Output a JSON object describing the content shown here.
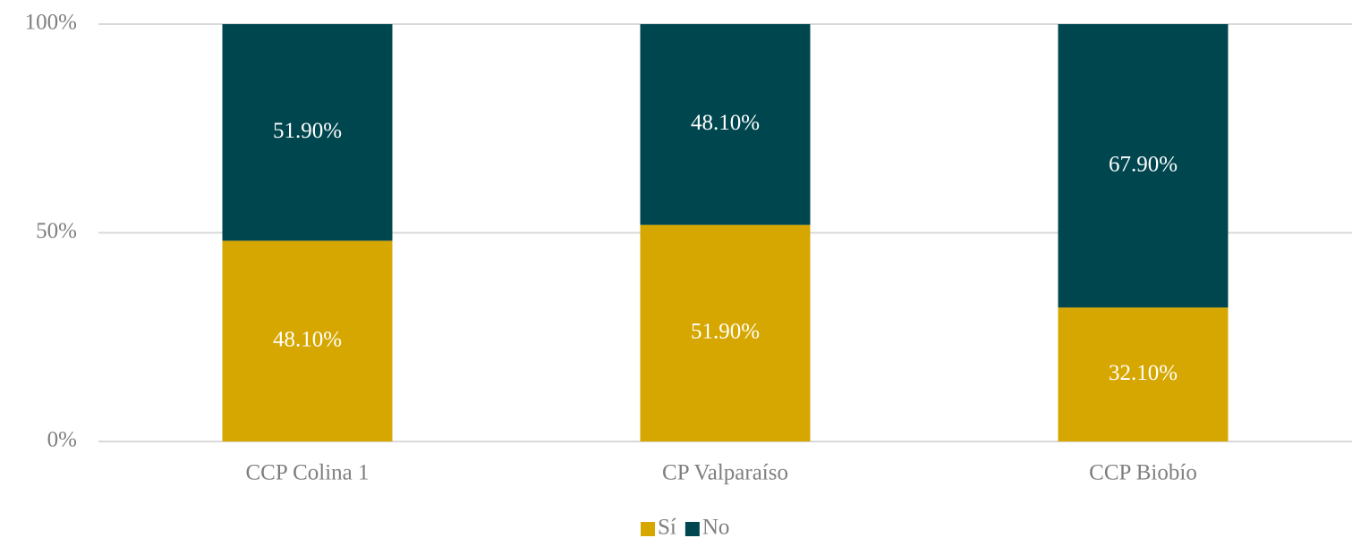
{
  "chart_data": {
    "type": "stacked_bar",
    "categories": [
      "CCP Colina 1",
      "CP Valparaíso",
      "CCP Biobío"
    ],
    "series": [
      {
        "name": "Sí",
        "color": "#d6a700",
        "values": [
          48.1,
          51.9,
          32.1
        ],
        "value_labels": [
          "48.10%",
          "51.90%",
          "32.10%"
        ]
      },
      {
        "name": "No",
        "color": "#00464f",
        "values": [
          51.9,
          48.1,
          67.9
        ],
        "value_labels": [
          "51.90%",
          "48.10%",
          "67.90%"
        ]
      }
    ],
    "ylim": [
      0,
      100
    ],
    "yticks": [
      {
        "value": 0,
        "label": "0%"
      },
      {
        "value": 50,
        "label": "50%"
      },
      {
        "value": 100,
        "label": "100%"
      }
    ],
    "grid": true,
    "legend": "bottom"
  }
}
